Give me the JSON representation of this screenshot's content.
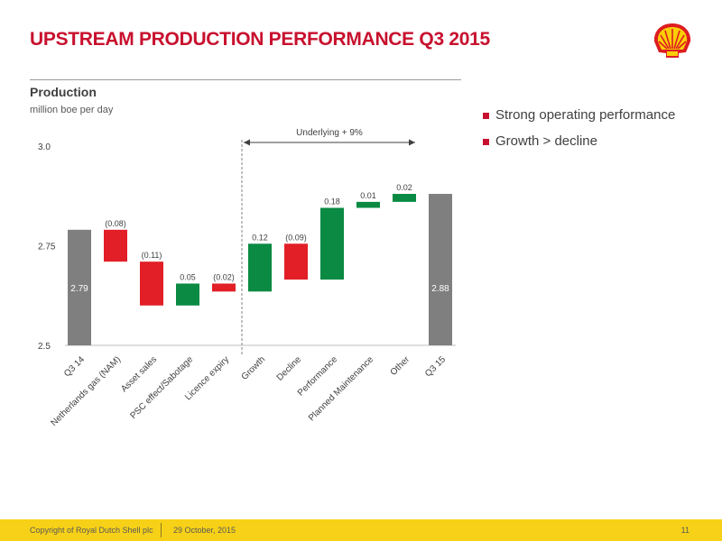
{
  "header": {
    "title": "UPSTREAM PRODUCTION PERFORMANCE Q3 2015"
  },
  "chart_section": {
    "title": "Production",
    "unit": "million boe per day"
  },
  "bullets": [
    "Strong operating performance",
    "Growth > decline"
  ],
  "colors": {
    "total": "#7f7f7f",
    "decrease": "#e21e26",
    "increase": "#0a8a43",
    "accent": "#c8102e",
    "footer": "#f7d117"
  },
  "chart_data": {
    "type": "bar",
    "subtype": "waterfall",
    "title": "Production",
    "ylabel": "million boe per day",
    "ylim": [
      2.5,
      3.0
    ],
    "yticks": [
      "2.5",
      "2.75",
      "3.0"
    ],
    "grid": false,
    "annotation": "Underlying + 9%",
    "bars": [
      {
        "category": "Q3 14",
        "kind": "total",
        "start": 2.5,
        "end": 2.79,
        "label": "2.79"
      },
      {
        "category": "Netherlands gas (NAM)",
        "kind": "decrease",
        "start": 2.79,
        "end": 2.71,
        "label": "(0.08)"
      },
      {
        "category": "Asset sales",
        "kind": "decrease",
        "start": 2.71,
        "end": 2.6,
        "label": "(0.11)"
      },
      {
        "category": "PSC effect/Sabotage",
        "kind": "increase",
        "start": 2.6,
        "end": 2.655,
        "label": "0.05"
      },
      {
        "category": "Licence expiry",
        "kind": "decrease",
        "start": 2.655,
        "end": 2.635,
        "label": "(0.02)"
      },
      {
        "category": "Growth",
        "kind": "increase",
        "start": 2.635,
        "end": 2.755,
        "label": "0.12"
      },
      {
        "category": "Decline",
        "kind": "decrease",
        "start": 2.755,
        "end": 2.665,
        "label": "(0.09)"
      },
      {
        "category": "Performance",
        "kind": "increase",
        "start": 2.665,
        "end": 2.845,
        "label": "0.18"
      },
      {
        "category": "Planned Maintenance",
        "kind": "increase",
        "start": 2.845,
        "end": 2.86,
        "label": "0.01"
      },
      {
        "category": "Other",
        "kind": "increase",
        "start": 2.86,
        "end": 2.88,
        "label": "0.02"
      },
      {
        "category": "Q3 15",
        "kind": "total",
        "start": 2.5,
        "end": 2.88,
        "label": "2.88"
      }
    ]
  },
  "footer": {
    "copyright": "Copyright of Royal Dutch Shell plc",
    "date": "29 October, 2015",
    "page": "11"
  }
}
